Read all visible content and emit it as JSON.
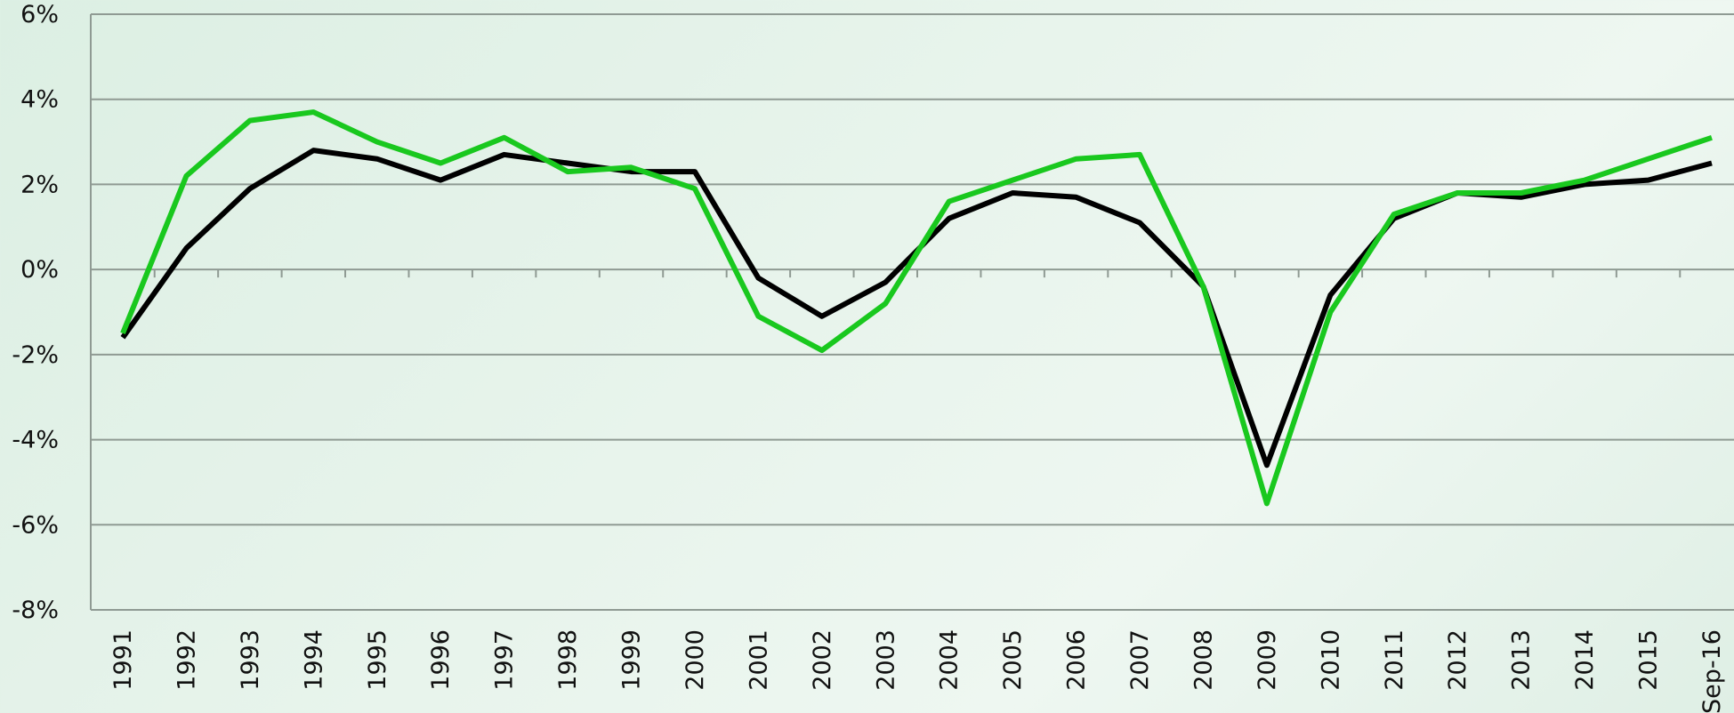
{
  "chart_data": {
    "type": "line",
    "categories": [
      "1991",
      "1992",
      "1993",
      "1994",
      "1995",
      "1996",
      "1997",
      "1998",
      "1999",
      "2000",
      "2001",
      "2002",
      "2003",
      "2004",
      "2005",
      "2006",
      "2007",
      "2008",
      "2009",
      "2010",
      "2011",
      "2012",
      "2013",
      "2014",
      "2015",
      "Sep-16"
    ],
    "series": [
      {
        "color": "#000000",
        "values": [
          -1.6,
          0.5,
          1.9,
          2.8,
          2.6,
          2.1,
          2.7,
          2.5,
          2.3,
          2.3,
          -0.2,
          -1.1,
          -0.3,
          1.2,
          1.8,
          1.7,
          1.1,
          -0.4,
          -4.6,
          -0.6,
          1.2,
          1.8,
          1.7,
          2.0,
          2.1,
          2.5
        ]
      },
      {
        "color": "#19c81e",
        "values": [
          -1.5,
          2.2,
          3.5,
          3.7,
          3.0,
          2.5,
          3.1,
          2.3,
          2.4,
          1.9,
          -1.1,
          -1.9,
          -0.8,
          1.6,
          2.1,
          2.6,
          2.7,
          -0.4,
          -5.5,
          -1.0,
          1.3,
          1.8,
          1.8,
          2.1,
          2.6,
          3.1
        ]
      }
    ],
    "ylim": [
      -8,
      6
    ],
    "yticks": [
      {
        "value": -8,
        "label": "-8%"
      },
      {
        "value": -6,
        "label": "-6%"
      },
      {
        "value": -4,
        "label": "-4%"
      },
      {
        "value": -2,
        "label": "-2%"
      },
      {
        "value": 0,
        "label": "0%"
      },
      {
        "value": 2,
        "label": "2%"
      },
      {
        "value": 4,
        "label": "4%"
      },
      {
        "value": 6,
        "label": "6%"
      }
    ],
    "grid": true
  }
}
